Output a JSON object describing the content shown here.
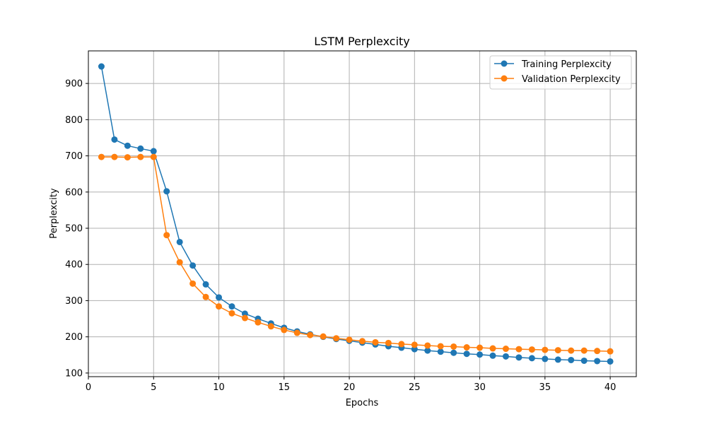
{
  "chart_data": {
    "type": "line",
    "title": "LSTM Perplexcity",
    "xlabel": "Epochs",
    "ylabel": "Perplexcity",
    "xlim": [
      0,
      42
    ],
    "ylim": [
      90,
      990
    ],
    "xticks": [
      0,
      5,
      10,
      15,
      20,
      25,
      30,
      35,
      40
    ],
    "yticks": [
      100,
      200,
      300,
      400,
      500,
      600,
      700,
      800,
      900
    ],
    "grid": true,
    "legend_position": "top-right",
    "x": [
      1,
      2,
      3,
      4,
      5,
      6,
      7,
      8,
      9,
      10,
      11,
      12,
      13,
      14,
      15,
      16,
      17,
      18,
      19,
      20,
      21,
      22,
      23,
      24,
      25,
      26,
      27,
      28,
      29,
      30,
      31,
      32,
      33,
      34,
      35,
      36,
      37,
      38,
      39,
      40
    ],
    "series": [
      {
        "name": "Training Perplexcity",
        "color": "#1f77b4",
        "values": [
          947,
          745,
          728,
          720,
          713,
          602,
          462,
          397,
          345,
          309,
          284,
          264,
          250,
          237,
          225,
          215,
          207,
          200,
          194,
          189,
          184,
          179,
          174,
          170,
          166,
          162,
          159,
          156,
          153,
          151,
          148,
          146,
          143,
          141,
          139,
          137,
          136,
          134,
          133,
          132
        ]
      },
      {
        "name": "Validation Perplexcity",
        "color": "#ff7f0e",
        "values": [
          697,
          697,
          696,
          697,
          697,
          481,
          406,
          347,
          310,
          284,
          265,
          252,
          240,
          229,
          219,
          211,
          205,
          201,
          196,
          192,
          188,
          185,
          183,
          180,
          178,
          176,
          174,
          173,
          171,
          170,
          168,
          167,
          166,
          165,
          164,
          163,
          162,
          162,
          161,
          160
        ]
      }
    ]
  }
}
